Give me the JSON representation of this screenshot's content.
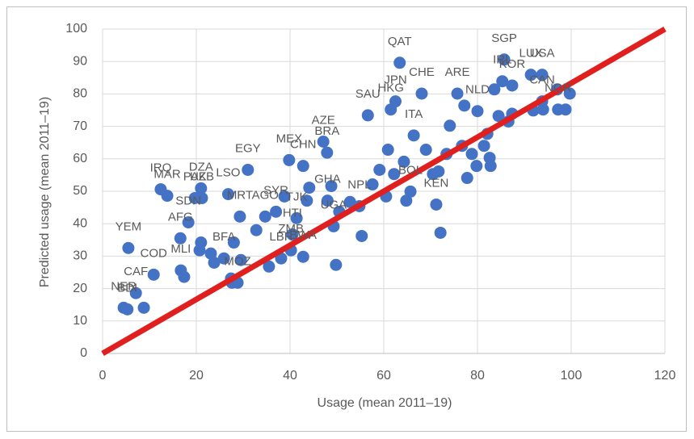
{
  "chart_data": {
    "type": "scatter",
    "xlabel": "Usage (mean 2011–19)",
    "ylabel": "Predicted usage (mean 2011–19)",
    "xlim": [
      0,
      120
    ],
    "xticks": [
      0,
      20,
      40,
      60,
      80,
      100,
      120
    ],
    "ylim": [
      0,
      100
    ],
    "yticks": [
      0,
      10,
      20,
      30,
      40,
      50,
      60,
      70,
      80,
      90,
      100
    ],
    "grid": true,
    "color": "#4472c4",
    "x": [
      5.5,
      4.5,
      5.3,
      7.1,
      8.8,
      10.9,
      12.4,
      13.8,
      16.6,
      16.7,
      17.4,
      18.3,
      19.7,
      21.0,
      21.0,
      21.2,
      20.7,
      23.1,
      23.8,
      25.9,
      26.8,
      27.4,
      27.6,
      28.8,
      28.0,
      29.3,
      31.0,
      29.5,
      32.8,
      34.7,
      35.5,
      37.0,
      38.1,
      38.8,
      40.2,
      40.5,
      41.4,
      42.8,
      43.6,
      44.1,
      39.8,
      42.8,
      47.1,
      48.8,
      48.0,
      49.3,
      49.8,
      50.5,
      52.8,
      54.8,
      55.3,
      56.6,
      57.6,
      59.1,
      60.9,
      60.5,
      62.2,
      62.5,
      61.5,
      63.4,
      64.3,
      64.8,
      65.7,
      66.4,
      68.1,
      69.0,
      70.5,
      71.2,
      72.1,
      71.7,
      73.4,
      74.1,
      75.7,
      77.2,
      77.8,
      76.7,
      78.8,
      80.0,
      79.8,
      81.4,
      82.1,
      82.6,
      82.8,
      83.6,
      84.5,
      85.7,
      87.4,
      86.6,
      91.4,
      91.9,
      93.8,
      93.8,
      94.0,
      97.2,
      98.8,
      99.7,
      97.0,
      87.4,
      47.9,
      85.3
    ],
    "values": [
      32.5,
      14.1,
      13.6,
      18.6,
      14.1,
      24.3,
      50.6,
      48.6,
      35.5,
      25.6,
      23.6,
      40.4,
      47.9,
      50.9,
      34.2,
      47.9,
      31.8,
      30.8,
      28.0,
      29.3,
      49.1,
      23.1,
      21.8,
      21.8,
      34.2,
      42.2,
      56.6,
      28.8,
      38.0,
      42.2,
      26.8,
      43.7,
      29.3,
      48.4,
      31.8,
      36.7,
      41.7,
      29.8,
      47.1,
      51.1,
      59.6,
      57.8,
      65.3,
      51.6,
      47.1,
      39.2,
      27.3,
      43.7,
      46.7,
      45.4,
      36.2,
      73.4,
      52.1,
      56.6,
      62.8,
      48.4,
      55.3,
      77.7,
      75.2,
      89.6,
      59.1,
      47.1,
      49.9,
      67.2,
      80.1,
      62.8,
      55.3,
      45.9,
      37.2,
      56.1,
      61.5,
      70.2,
      80.1,
      76.4,
      54.1,
      64.0,
      61.5,
      74.7,
      57.8,
      64.0,
      67.7,
      60.3,
      57.8,
      81.4,
      73.2,
      90.6,
      73.9,
      71.5,
      85.9,
      74.9,
      85.9,
      77.7,
      75.2,
      75.2,
      75.2,
      80.1,
      81.4,
      82.6,
      61.9,
      83.9
    ],
    "labels": [
      "YEM",
      "NER",
      "BDI",
      "CAF",
      null,
      "COD",
      "IRQ",
      "MAR",
      "AFG",
      "MLI",
      null,
      "SDN",
      "PAK",
      "DZA",
      null,
      "UZB",
      null,
      null,
      null,
      "BFA",
      "LSO",
      null,
      null,
      "MOZ",
      null,
      "MRT",
      "EGY",
      null,
      null,
      "AGO",
      null,
      "SYR",
      "LBR",
      null,
      "ZMB",
      "HTI",
      "TJK",
      "BWA",
      null,
      null,
      "MEX",
      "CHN",
      "AZE",
      null,
      "GHA",
      "UGA",
      null,
      null,
      null,
      "NPL",
      null,
      "SAU",
      null,
      null,
      null,
      null,
      null,
      "JPN",
      "HKG",
      "QAT",
      null,
      null,
      "BOL",
      "ITA",
      "CHE",
      null,
      null,
      "KEN",
      null,
      null,
      null,
      null,
      "ARE",
      null,
      null,
      null,
      null,
      "NLD",
      null,
      null,
      null,
      null,
      null,
      null,
      null,
      "SGP",
      null,
      null,
      "LUX",
      null,
      "USA",
      "CAN",
      null,
      "NOR",
      null,
      null,
      null,
      "KOR",
      "BRA",
      "IRL"
    ],
    "reference_line": {
      "x": [
        0,
        120
      ],
      "y": [
        0,
        100
      ],
      "color": "#e0201f"
    }
  }
}
